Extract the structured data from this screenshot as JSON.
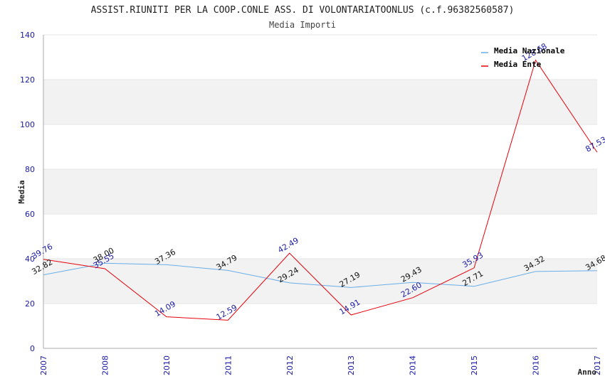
{
  "chart_data": {
    "type": "line",
    "title": "ASSIST.RIUNITI PER LA COOP.CONLE ASS. DI VOLONTARIATOONLUS (c.f.96382560587)",
    "subtitle": "Media Importi",
    "xlabel": "Anno",
    "ylabel": "Media",
    "ylim": [
      0,
      140
    ],
    "yticks": [
      0,
      20,
      40,
      60,
      80,
      100,
      120,
      140
    ],
    "categories": [
      "2007",
      "2008",
      "2010",
      "2011",
      "2012",
      "2013",
      "2014",
      "2015",
      "2016",
      "2017"
    ],
    "series": [
      {
        "name": "Media Nazionale",
        "color": "#6aaee8",
        "values": [
          32.82,
          38.0,
          37.36,
          34.79,
          29.24,
          27.19,
          29.43,
          27.71,
          34.32,
          34.68
        ],
        "labels": [
          "32.82",
          "38.00",
          "37.36",
          "34.79",
          "29.24",
          "27.19",
          "29.43",
          "27.71",
          "34.32",
          "34.68"
        ]
      },
      {
        "name": "Media Ente",
        "color": "#e8000b",
        "values": [
          39.76,
          35.55,
          14.09,
          12.59,
          42.49,
          14.91,
          22.6,
          35.93,
          128.68,
          87.53
        ],
        "labels": [
          "39.76",
          "35.55",
          "14.09",
          "12.59",
          "42.49",
          "14.91",
          "22.60",
          "35.93",
          "128.68",
          "87.53"
        ]
      }
    ],
    "grid": true,
    "grid_style": "alternating horizontal bands",
    "legend_position": "top-right",
    "colors": {
      "band": "#f2f2f2",
      "axis": "#aaaaaa",
      "tick_text": "#1a1aa6"
    }
  }
}
